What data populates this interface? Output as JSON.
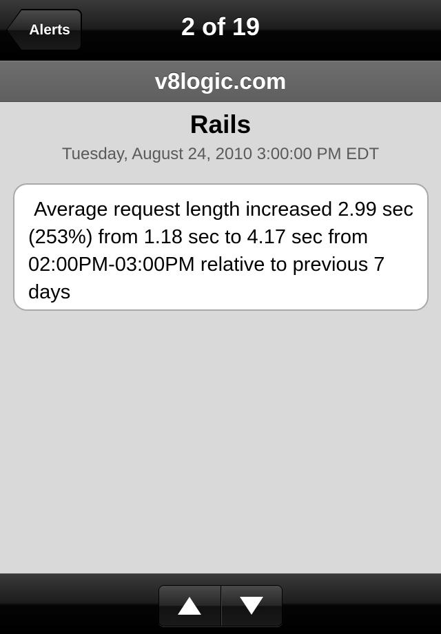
{
  "navbar": {
    "back_label": "Alerts",
    "title": "2 of 19"
  },
  "host": "v8logic.com",
  "alert": {
    "title": "Rails",
    "date": "Tuesday, August 24, 2010 3:00:00 PM EDT",
    "message": " Average request length increased 2.99 sec (253%) from 1.18 sec to 4.17 sec from 02:00PM-03:00PM relative to previous 7 days"
  },
  "toolbar": {
    "prev_icon": "up-arrow-icon",
    "next_icon": "down-arrow-icon"
  },
  "colors": {
    "background": "#d9d9d9",
    "bar": "#000000",
    "host_bar": "#666666",
    "date_text": "#5a5a5a"
  }
}
